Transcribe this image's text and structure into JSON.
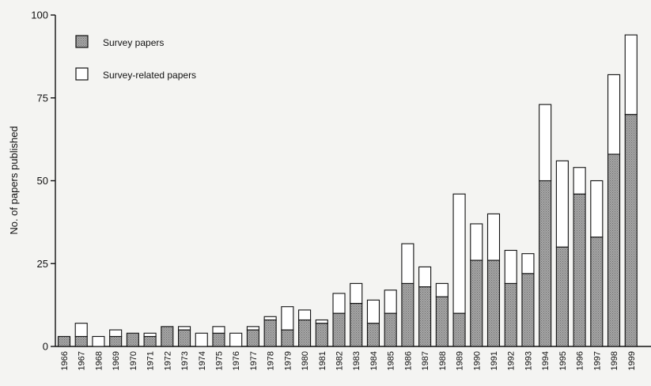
{
  "chart_data": {
    "type": "bar",
    "stacked": true,
    "categories": [
      "1966",
      "1967",
      "1968",
      "1969",
      "1970",
      "1971",
      "1972",
      "1973",
      "1974",
      "1975",
      "1976",
      "1977",
      "1978",
      "1979",
      "1980",
      "1981",
      "1982",
      "1983",
      "1984",
      "1985",
      "1986",
      "1987",
      "1988",
      "1989",
      "1990",
      "1991",
      "1992",
      "1993",
      "1994",
      "1995",
      "1996",
      "1997",
      "1998",
      "1999"
    ],
    "series": [
      {
        "name": "Survey papers",
        "color": "#a6a6a6",
        "values": [
          3,
          3,
          0,
          3,
          4,
          3,
          6,
          5,
          0,
          4,
          0,
          5,
          8,
          5,
          8,
          7,
          10,
          13,
          7,
          10,
          19,
          18,
          15,
          10,
          26,
          26,
          19,
          22,
          50,
          30,
          46,
          33,
          58,
          70
        ]
      },
      {
        "name": "Survey-related papers",
        "color": "#ffffff",
        "values": [
          0,
          4,
          3,
          2,
          0,
          1,
          0,
          1,
          4,
          2,
          4,
          1,
          1,
          7,
          3,
          1,
          6,
          6,
          7,
          7,
          12,
          6,
          4,
          36,
          11,
          14,
          10,
          6,
          23,
          26,
          8,
          17,
          24,
          24
        ]
      }
    ],
    "ylabel": "No. of papers published",
    "xlabel": "",
    "ylim": [
      0,
      100
    ],
    "yticks": [
      0,
      25,
      50,
      75,
      100
    ],
    "legend_position": "top-left",
    "grid": false
  }
}
